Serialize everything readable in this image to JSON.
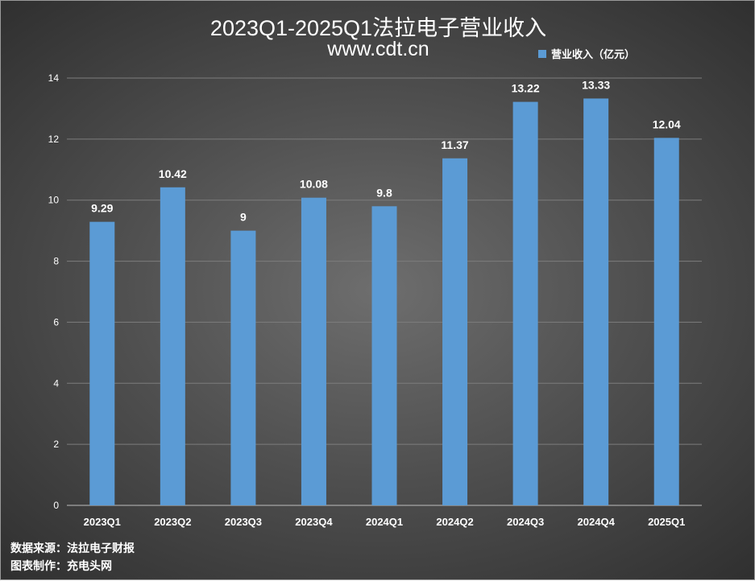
{
  "chart_data": {
    "type": "bar",
    "title": "2023Q1-2025Q1法拉电子营业收入",
    "subtitle": "www.cdt.cn",
    "categories": [
      "2023Q1",
      "2023Q2",
      "2023Q3",
      "2023Q4",
      "2024Q1",
      "2024Q2",
      "2024Q3",
      "2024Q4",
      "2025Q1"
    ],
    "series": [
      {
        "name": "营业收入（亿元）",
        "values": [
          9.29,
          10.42,
          9,
          10.08,
          9.8,
          11.37,
          13.22,
          13.33,
          12.04
        ]
      }
    ],
    "data_labels": [
      "9.29",
      "10.42",
      "9",
      "10.08",
      "9.8",
      "11.37",
      "13.22",
      "13.33",
      "12.04"
    ],
    "ylim": [
      0,
      14
    ],
    "yticks": [
      0,
      2,
      4,
      6,
      8,
      10,
      12,
      14
    ],
    "xlabel": "",
    "ylabel": "",
    "grid": true,
    "legend_position": "top-right",
    "bar_color": "#5b9bd5"
  },
  "footer": {
    "source": "数据来源：法拉电子财报",
    "maker": "图表制作：充电头网"
  }
}
